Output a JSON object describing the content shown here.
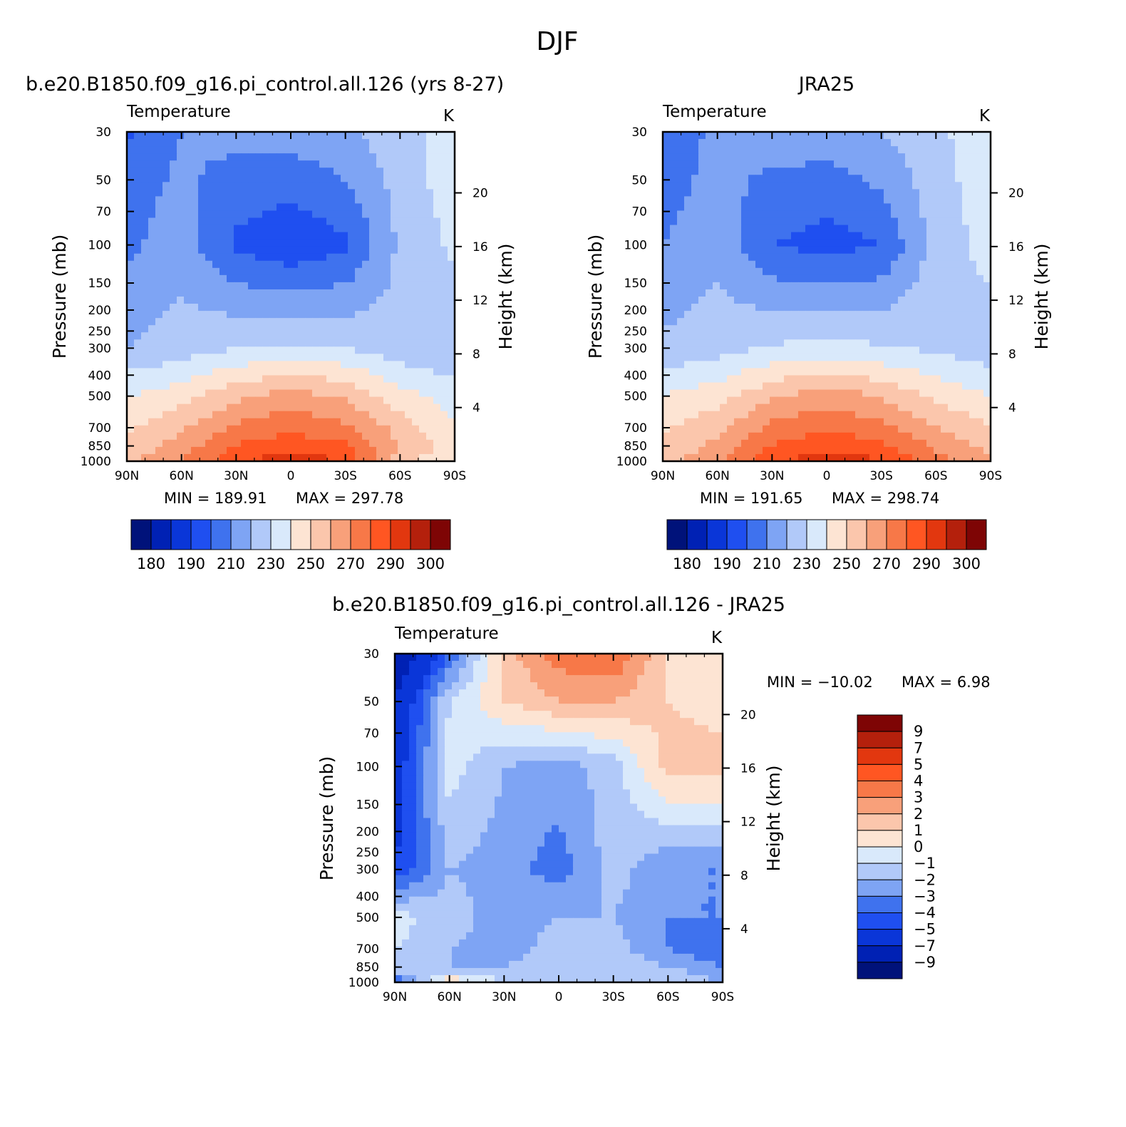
{
  "figure_title": "DJF",
  "colors": {
    "abs_palette": [
      "#00127a",
      "#0021b4",
      "#0a36d8",
      "#1f4ff0",
      "#3f72ee",
      "#7ea4f4",
      "#b1c9f9",
      "#d9e9fb",
      "#fde4d3",
      "#fbc6ac",
      "#f8a07a",
      "#f77848",
      "#ff5622",
      "#e2370f",
      "#b4200c",
      "#7e0505"
    ],
    "diff_palette": [
      "#00127a",
      "#0021b4",
      "#0a36d8",
      "#1f4ff0",
      "#3f72ee",
      "#7ea4f4",
      "#b1c9f9",
      "#d9e9fb",
      "#fde4d3",
      "#fbc6ac",
      "#f8a07a",
      "#f77848",
      "#ff5622",
      "#e2370f",
      "#b4200c",
      "#7e0505"
    ]
  },
  "chart_data": [
    {
      "type": "heatmap",
      "title": "b.e20.B1850.f09_g16.pi_control.all.126 (yrs 8-27)",
      "subtitle": "Temperature",
      "units": "K",
      "xlabel": "",
      "ylabel": "Pressure (mb)",
      "ylabel_right": "Height (km)",
      "x_ticks": [
        "90N",
        "60N",
        "30N",
        "0",
        "30S",
        "60S",
        "90S"
      ],
      "y_ticks": [
        "30",
        "50",
        "70",
        "100",
        "150",
        "200",
        "250",
        "300",
        "400",
        "500",
        "700",
        "850",
        "1000"
      ],
      "y_ticks_right": [
        "20",
        "16",
        "12",
        "8",
        "4"
      ],
      "ylim": [
        1000,
        30
      ],
      "log_scale_y": true,
      "min_label": "MIN = 189.91",
      "max_label": "MAX = 297.78",
      "min": 189.91,
      "max": 297.78,
      "colorbar_labels": [
        "180",
        "190",
        "210",
        "230",
        "250",
        "270",
        "290",
        "300"
      ],
      "x": [
        90,
        60,
        30,
        0,
        -30,
        -60,
        -90
      ],
      "y": [
        1000,
        850,
        700,
        500,
        300,
        100,
        50,
        30
      ],
      "z": [
        [
          258,
          270,
          288,
          296,
          290,
          250,
          245
        ],
        [
          253,
          265,
          281,
          286,
          282,
          260,
          245
        ],
        [
          248,
          258,
          272,
          277,
          272,
          256,
          240
        ],
        [
          240,
          246,
          257,
          265,
          258,
          244,
          235
        ],
        [
          220,
          225,
          230,
          232,
          230,
          224,
          220
        ],
        [
          208,
          215,
          198,
          192,
          198,
          222,
          232
        ],
        [
          205,
          212,
          206,
          204,
          210,
          224,
          236
        ],
        [
          198,
          210,
          214,
          215,
          218,
          226,
          235
        ]
      ]
    },
    {
      "type": "heatmap",
      "title": "JRA25",
      "subtitle": "Temperature",
      "units": "K",
      "xlabel": "",
      "ylabel": "Pressure (mb)",
      "ylabel_right": "Height (km)",
      "x_ticks": [
        "90N",
        "60N",
        "30N",
        "0",
        "30S",
        "60S",
        "90S"
      ],
      "y_ticks": [
        "30",
        "50",
        "70",
        "100",
        "150",
        "200",
        "250",
        "300",
        "400",
        "500",
        "700",
        "850",
        "1000"
      ],
      "y_ticks_right": [
        "20",
        "16",
        "12",
        "8",
        "4"
      ],
      "ylim": [
        1000,
        30
      ],
      "log_scale_y": true,
      "min_label": "MIN = 191.65",
      "max_label": "MAX = 298.74",
      "min": 191.65,
      "max": 298.74,
      "colorbar_labels": [
        "180",
        "190",
        "210",
        "230",
        "250",
        "270",
        "290",
        "300"
      ],
      "x": [
        90,
        60,
        30,
        0,
        -30,
        -60,
        -90
      ],
      "y": [
        1000,
        850,
        700,
        500,
        300,
        100,
        50,
        30
      ],
      "z": [
        [
          256,
          268,
          288,
          297,
          291,
          274,
          262
        ],
        [
          252,
          263,
          281,
          287,
          283,
          268,
          256
        ],
        [
          248,
          257,
          273,
          278,
          273,
          260,
          250
        ],
        [
          240,
          246,
          258,
          266,
          259,
          248,
          240
        ],
        [
          222,
          226,
          231,
          234,
          231,
          228,
          224
        ],
        [
          210,
          217,
          200,
          196,
          200,
          224,
          234
        ],
        [
          206,
          213,
          208,
          206,
          212,
          226,
          236
        ],
        [
          204,
          212,
          216,
          217,
          220,
          228,
          236
        ]
      ]
    },
    {
      "type": "heatmap",
      "title": "b.e20.B1850.f09_g16.pi_control.all.126 - JRA25",
      "subtitle": "Temperature",
      "units": "K",
      "xlabel": "",
      "ylabel": "Pressure (mb)",
      "ylabel_right": "Height (km)",
      "x_ticks": [
        "90N",
        "60N",
        "30N",
        "0",
        "30S",
        "60S",
        "90S"
      ],
      "y_ticks": [
        "30",
        "50",
        "70",
        "100",
        "150",
        "200",
        "250",
        "300",
        "400",
        "500",
        "700",
        "850",
        "1000"
      ],
      "y_ticks_right": [
        "20",
        "16",
        "12",
        "8",
        "4"
      ],
      "ylim": [
        1000,
        30
      ],
      "log_scale_y": true,
      "min_label": "MIN = −10.02",
      "max_label": "MAX =    6.98",
      "min": -10.02,
      "max": 6.98,
      "colorbar_labels": [
        "9",
        "7",
        "5",
        "4",
        "3",
        "2",
        "1",
        "0",
        "−1",
        "−2",
        "−3",
        "−4",
        "−5",
        "−7",
        "−9"
      ],
      "x": [
        90,
        60,
        30,
        0,
        -30,
        -60,
        -90
      ],
      "y": [
        1000,
        850,
        700,
        500,
        300,
        100,
        50,
        30
      ],
      "z": [
        [
          -4,
          1,
          -1,
          -1,
          -1,
          -1,
          -2
        ],
        [
          -1,
          -2,
          -2,
          -1.5,
          -1,
          -2,
          -3
        ],
        [
          -1,
          -2,
          -2.5,
          -1.5,
          -1.5,
          -3,
          -4
        ],
        [
          -0.5,
          -1.5,
          -2.5,
          -2,
          -2,
          -3,
          -3
        ],
        [
          -5,
          -2,
          -2.5,
          -3.5,
          -1.5,
          -3,
          -3
        ],
        [
          -6,
          -0.5,
          -2,
          -2.5,
          -1.5,
          1.5,
          1.5
        ],
        [
          -7,
          -1,
          1,
          2,
          2,
          1,
          0.5
        ],
        [
          -9,
          -4,
          1.5,
          3.5,
          4,
          1,
          1
        ]
      ]
    }
  ]
}
